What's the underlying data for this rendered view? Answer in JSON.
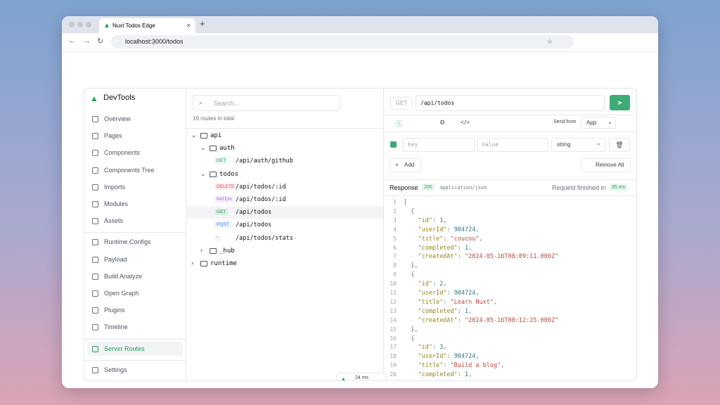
{
  "browser": {
    "tab_title": "Nuxt Todos Edge",
    "url": "localhost:3000/todos"
  },
  "sidebar": {
    "title": "DevTools",
    "groups": [
      [
        {
          "label": "Overview"
        },
        {
          "label": "Pages"
        },
        {
          "label": "Components"
        },
        {
          "label": "Components Tree"
        },
        {
          "label": "Imports"
        },
        {
          "label": "Modules"
        },
        {
          "label": "Assets"
        }
      ],
      [
        {
          "label": "Runtime Configs"
        },
        {
          "label": "Payload"
        },
        {
          "label": "Build Analyze"
        },
        {
          "label": "Open Graph"
        },
        {
          "label": "Plugins"
        },
        {
          "label": "Timeline"
        }
      ],
      [
        {
          "label": "Server Routes",
          "active": true
        }
      ],
      [
        {
          "label": "Settings"
        }
      ]
    ]
  },
  "routes": {
    "search_placeholder": "Search...",
    "count": "16 routes in total",
    "tree": [
      {
        "label": "api",
        "depth": 0,
        "folder": "open"
      },
      {
        "label": "auth",
        "depth": 1,
        "folder": "open"
      },
      {
        "label": "/api/auth/github",
        "depth": 2,
        "method": "GET",
        "method_color": "#22a55a"
      },
      {
        "label": "todos",
        "depth": 1,
        "folder": "open"
      },
      {
        "label": "/api/todos/:id",
        "depth": 2,
        "method": "DELETE",
        "method_color": "#e5484d"
      },
      {
        "label": "/api/todos/:id",
        "depth": 2,
        "method": "PATCH",
        "method_color": "#a855f7"
      },
      {
        "label": "/api/todos",
        "depth": 2,
        "method": "GET",
        "method_color": "#22a55a",
        "selected": true
      },
      {
        "label": "/api/todos",
        "depth": 2,
        "method": "POST",
        "method_color": "#3b82f6"
      },
      {
        "label": "/api/todos/stats",
        "depth": 2,
        "method": "*",
        "method_color": "#9ca3af"
      },
      {
        "label": "_hub",
        "depth": 1,
        "folder": "closed"
      },
      {
        "label": "runtime",
        "depth": 0,
        "folder": "closed"
      }
    ]
  },
  "request": {
    "method": "GET",
    "path": "/api/todos",
    "send_from_label": "Send from",
    "send_from": "App",
    "key_placeholder": "key",
    "value_placeholder": "Value",
    "type": "string",
    "add": "Add",
    "remove_all": "Remove All"
  },
  "response": {
    "label": "Response",
    "status": "200",
    "content_type": "application/json",
    "finished": "Request finished in",
    "time": "35 ms",
    "line_numbers": [
      "1",
      "2",
      "3",
      "4",
      "5",
      "6",
      "7",
      "8",
      "9",
      "10",
      "11",
      "12",
      "13",
      "14",
      "15",
      "16",
      "17",
      "18",
      "19",
      "20"
    ],
    "lines": [
      "[",
      "  {",
      "    \"id\": 1,",
      "    \"userId\": 904724,",
      "    \"title\": \"coucou\",",
      "    \"completed\": 1,",
      "    \"createdAt\": \"2024-05-16T08:09:11.000Z\"",
      "  },",
      "  {",
      "    \"id\": 2,",
      "    \"userId\": 904724,",
      "    \"title\": \"Learn Nuxt\",",
      "    \"completed\": 1,",
      "    \"createdAt\": \"2024-05-16T08:12:25.000Z\"",
      "  },",
      "  {",
      "    \"id\": 3,",
      "    \"userId\": 904724,",
      "    \"title\": \"Build a blog\",",
      "    \"completed\": 1,"
    ]
  },
  "floating": {
    "time": "24 ms"
  }
}
